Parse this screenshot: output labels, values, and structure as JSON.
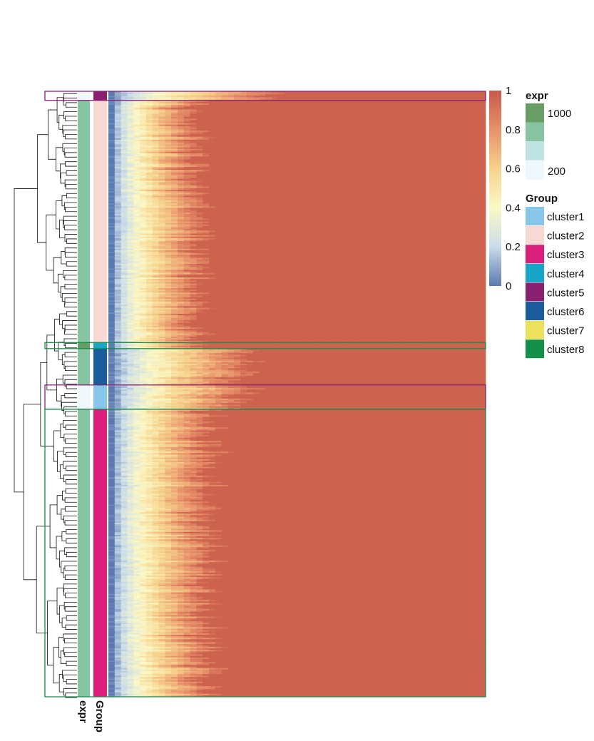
{
  "chart_data": {
    "type": "heatmap",
    "color_scale": {
      "min": 0,
      "max": 1,
      "ticks": [
        "0",
        "0.2",
        "0.4",
        "0.6",
        "0.8",
        "1"
      ],
      "colors": [
        "#5b79b0",
        "#c9dcea",
        "#fbf8c6",
        "#f6d28c",
        "#e8926a",
        "#c8594a"
      ]
    },
    "annotations": [
      {
        "key": "expr",
        "label": "expr"
      },
      {
        "key": "group",
        "label": "Group"
      }
    ],
    "legends": {
      "expr": {
        "title": "expr",
        "labels": [
          "1000",
          "200"
        ],
        "colors": [
          "#669e63",
          "#86c4a2",
          "#bfe2e2",
          "#eef7fb"
        ]
      },
      "group": {
        "title": "Group",
        "items": [
          {
            "label": "cluster1",
            "color": "#86c7e9"
          },
          {
            "label": "cluster2",
            "color": "#f7d8d2"
          },
          {
            "label": "cluster3",
            "color": "#dc1f7b"
          },
          {
            "label": "cluster4",
            "color": "#18a6c8"
          },
          {
            "label": "cluster5",
            "color": "#8a2070"
          },
          {
            "label": "cluster6",
            "color": "#1a5c9c"
          },
          {
            "label": "cluster7",
            "color": "#ece15a"
          },
          {
            "label": "cluster8",
            "color": "#14904a"
          }
        ]
      }
    },
    "row_blocks": [
      {
        "group": "cluster5",
        "expr": "#eef7fb",
        "rows": 6,
        "profile": "top"
      },
      {
        "group": "cluster2",
        "expr": "#86c4a2",
        "rows": 160,
        "profile": "mid"
      },
      {
        "group": "cluster4",
        "expr": "#669e63",
        "rows": 4,
        "profile": "flat"
      },
      {
        "group": "cluster6",
        "expr": "#86c4a2",
        "rows": 24,
        "profile": "slow"
      },
      {
        "group": "cluster1",
        "expr": "#eef7fb",
        "rows": 16,
        "profile": "slow"
      },
      {
        "group": "cluster3",
        "expr": "#86c4a2",
        "rows": 190,
        "profile": "steep"
      }
    ],
    "highlight_boxes": [
      {
        "rows": [
          0,
          6
        ],
        "color": "#8a2070"
      },
      {
        "rows": [
          166,
          170
        ],
        "color": "#14904a"
      },
      {
        "rows": [
          194,
          210
        ],
        "color": "#8a2070"
      },
      {
        "rows": [
          210,
          400
        ],
        "color": "#14904a"
      }
    ]
  }
}
